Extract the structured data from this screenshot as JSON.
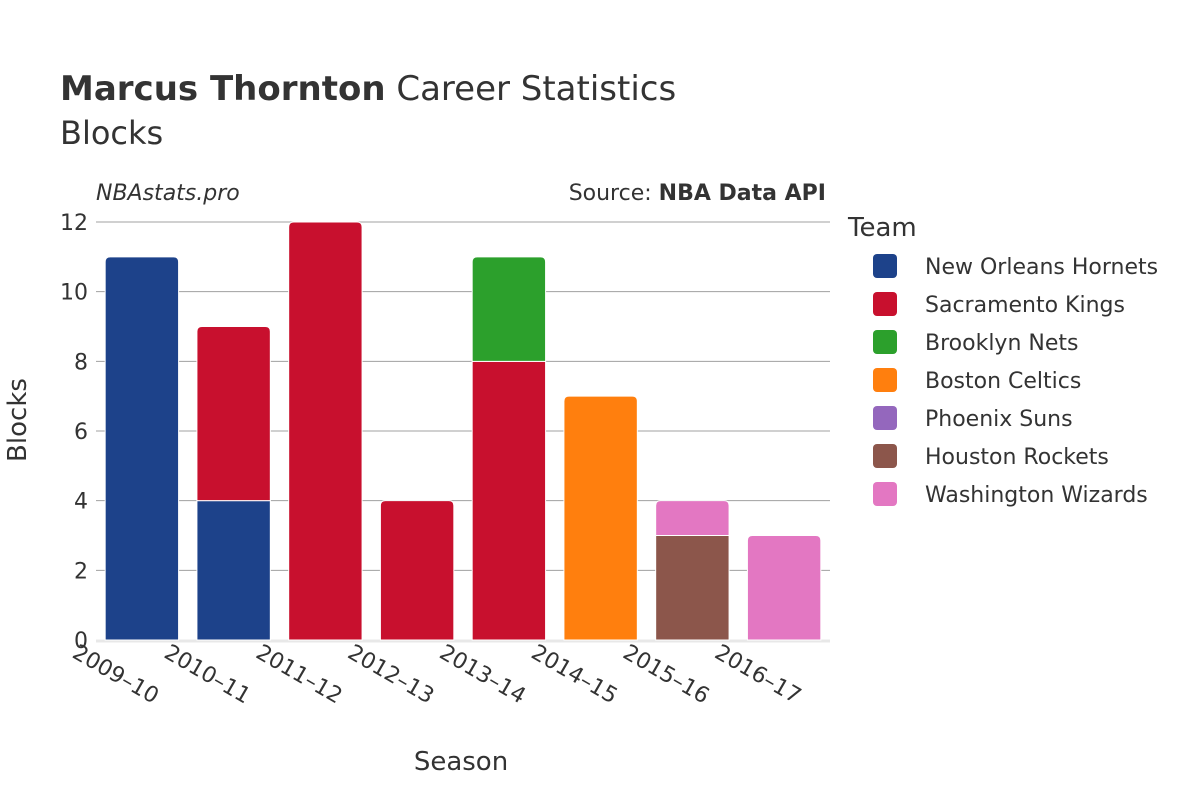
{
  "title_bold": "Marcus Thornton",
  "title_rest": " Career Statistics",
  "subtitle": "Blocks",
  "watermark": "NBAstats.pro",
  "source_label": "Source: ",
  "source_name": "NBA Data API",
  "chart_data": {
    "type": "bar",
    "stacked": true,
    "xlabel": "Season",
    "ylabel": "Blocks",
    "ylim": [
      0,
      12
    ],
    "yticks": [
      0,
      2,
      4,
      6,
      8,
      10,
      12
    ],
    "grid": true,
    "legend_title": "Team",
    "legend_position": "right",
    "categories": [
      "2009–10",
      "2010–11",
      "2011–12",
      "2012–13",
      "2013–14",
      "2014–15",
      "2015–16",
      "2016–17"
    ],
    "series": [
      {
        "name": "New Orleans Hornets",
        "color": "#1d428a",
        "values": [
          11,
          4,
          0,
          0,
          0,
          0,
          0,
          0
        ]
      },
      {
        "name": "Sacramento Kings",
        "color": "#c8102e",
        "values": [
          0,
          5,
          12,
          4,
          8,
          0,
          0,
          0
        ]
      },
      {
        "name": "Brooklyn Nets",
        "color": "#2ca02c",
        "values": [
          0,
          0,
          0,
          0,
          3,
          0,
          0,
          0
        ]
      },
      {
        "name": "Boston Celtics",
        "color": "#ff7f0e",
        "values": [
          0,
          0,
          0,
          0,
          0,
          7,
          0,
          0
        ]
      },
      {
        "name": "Phoenix Suns",
        "color": "#9467bd",
        "values": [
          0,
          0,
          0,
          0,
          0,
          0,
          0,
          0
        ]
      },
      {
        "name": "Houston Rockets",
        "color": "#8c564b",
        "values": [
          0,
          0,
          0,
          0,
          0,
          0,
          3,
          0
        ]
      },
      {
        "name": "Washington Wizards",
        "color": "#e377c2",
        "values": [
          0,
          0,
          0,
          0,
          0,
          0,
          1,
          3
        ]
      }
    ]
  }
}
